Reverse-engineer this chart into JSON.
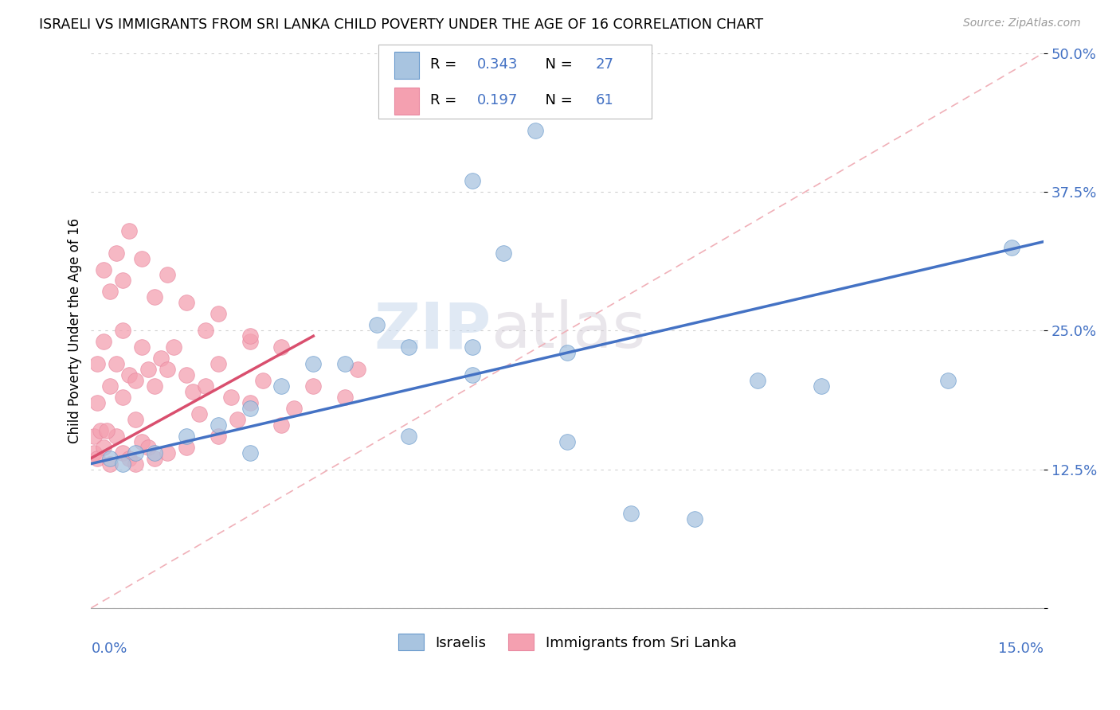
{
  "title": "ISRAELI VS IMMIGRANTS FROM SRI LANKA CHILD POVERTY UNDER THE AGE OF 16 CORRELATION CHART",
  "source": "Source: ZipAtlas.com",
  "ylabel": "Child Poverty Under the Age of 16",
  "xlim": [
    0.0,
    15.0
  ],
  "ylim": [
    0.0,
    50.0
  ],
  "yticks": [
    0.0,
    12.5,
    25.0,
    37.5,
    50.0
  ],
  "ytick_labels": [
    "",
    "12.5%",
    "25.0%",
    "37.5%",
    "50.0%"
  ],
  "label_israelis": "Israelis",
  "label_srilanka": "Immigrants from Sri Lanka",
  "blue_color": "#a8c4e0",
  "pink_color": "#f4a0b0",
  "trend_blue": "#4472c4",
  "trend_pink": "#d94f6e",
  "text_color": "#4472c4",
  "watermark_zip": "ZIP",
  "watermark_atlas": "atlas",
  "israelis_x": [
    0.3,
    0.5,
    0.7,
    1.0,
    1.5,
    2.0,
    2.5,
    2.5,
    3.0,
    3.5,
    4.0,
    5.0,
    5.0,
    6.0,
    6.0,
    6.5,
    7.5,
    7.5,
    8.5,
    9.5,
    10.5,
    11.5,
    13.5,
    14.5,
    4.5,
    6.0,
    7.0
  ],
  "israelis_y": [
    13.5,
    13.0,
    14.0,
    14.0,
    15.5,
    16.5,
    18.0,
    14.0,
    20.0,
    22.0,
    22.0,
    23.5,
    15.5,
    21.0,
    23.5,
    32.0,
    23.0,
    15.0,
    8.5,
    8.0,
    20.5,
    20.0,
    20.5,
    32.5,
    25.5,
    38.5,
    43.0
  ],
  "srilanka_x": [
    0.05,
    0.05,
    0.1,
    0.1,
    0.15,
    0.2,
    0.2,
    0.3,
    0.3,
    0.4,
    0.4,
    0.5,
    0.5,
    0.5,
    0.6,
    0.6,
    0.7,
    0.7,
    0.8,
    0.8,
    0.9,
    0.9,
    1.0,
    1.0,
    1.1,
    1.2,
    1.2,
    1.3,
    1.5,
    1.5,
    1.6,
    1.7,
    1.8,
    2.0,
    2.0,
    2.2,
    2.3,
    2.5,
    2.5,
    2.7,
    3.0,
    3.2,
    3.5,
    4.0,
    4.2,
    0.2,
    0.3,
    0.4,
    0.5,
    0.6,
    0.8,
    1.0,
    1.2,
    1.5,
    1.8,
    2.0,
    2.5,
    3.0,
    0.1,
    0.25,
    0.7
  ],
  "srilanka_y": [
    14.0,
    15.5,
    13.5,
    22.0,
    16.0,
    14.5,
    24.0,
    13.0,
    20.0,
    15.5,
    22.0,
    14.0,
    19.0,
    25.0,
    13.5,
    21.0,
    13.0,
    20.5,
    15.0,
    23.5,
    14.5,
    21.5,
    13.5,
    20.0,
    22.5,
    14.0,
    21.5,
    23.5,
    14.5,
    21.0,
    19.5,
    17.5,
    20.0,
    15.5,
    22.0,
    19.0,
    17.0,
    18.5,
    24.0,
    20.5,
    16.5,
    18.0,
    20.0,
    19.0,
    21.5,
    30.5,
    28.5,
    32.0,
    29.5,
    34.0,
    31.5,
    28.0,
    30.0,
    27.5,
    25.0,
    26.5,
    24.5,
    23.5,
    18.5,
    16.0,
    17.0
  ],
  "blue_trend_x0": 0.0,
  "blue_trend_y0": 13.0,
  "blue_trend_x1": 15.0,
  "blue_trend_y1": 33.0,
  "pink_trend_x0": 0.0,
  "pink_trend_y0": 13.5,
  "pink_trend_x1": 3.5,
  "pink_trend_y1": 24.5
}
